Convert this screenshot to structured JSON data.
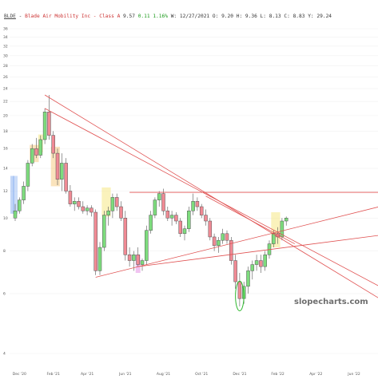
{
  "header": {
    "symbol": "BLDE",
    "name": "Blade Air Mobility Inc - Class A",
    "last": "9.57",
    "change": "0.11",
    "change_pct": "1.16%",
    "w_label": "W:",
    "date": "12/27/2021",
    "o_label": "O:",
    "open": "9.20",
    "h_label": "H:",
    "high": "9.36",
    "l_label": "L:",
    "low": "8.13",
    "c_label": "C:",
    "close": "8.83",
    "y_label": "Y:",
    "ytd": "29.24"
  },
  "watermark": "slopecharts.com",
  "colors": {
    "up": "#7ddc7d",
    "down": "#f08a94",
    "trendline": "#e05050",
    "highlight_orange": "#f5c26b",
    "highlight_yellow": "#f5e36b",
    "highlight_blue": "#8fb4f0",
    "highlight_magenta": "#e07be0"
  },
  "chart_data": {
    "type": "candlestick",
    "scale": "log",
    "ylim": [
      4,
      36
    ],
    "y_ticks": [
      "36",
      "34",
      "32",
      "30",
      "28",
      "26",
      "24",
      "22",
      "20",
      "18",
      "16",
      "14",
      "12",
      "10",
      "8",
      "6",
      "4"
    ],
    "y_tick_values": [
      36,
      34,
      32,
      30,
      28,
      26,
      24,
      22,
      20,
      18,
      16,
      14,
      12,
      10,
      8,
      6,
      4
    ],
    "x_ticks": [
      "Dec '20",
      "Feb '21",
      "Apr '21",
      "Jun '21",
      "Aug '21",
      "Oct '21",
      "Dec '21",
      "Feb '22",
      "Apr '22",
      "Jun '22"
    ],
    "x_tick_index": [
      1,
      9,
      17,
      26,
      35,
      44,
      53,
      62,
      71,
      80
    ],
    "candles": [
      [
        10.0,
        11.0,
        9.8,
        10.5
      ],
      [
        10.5,
        11.5,
        10.3,
        11.3
      ],
      [
        11.3,
        12.8,
        11.0,
        12.4
      ],
      [
        12.4,
        14.8,
        12.0,
        14.5
      ],
      [
        14.5,
        16.5,
        14.2,
        16.0
      ],
      [
        16.0,
        17.2,
        15.0,
        15.3
      ],
      [
        15.3,
        17.5,
        15.0,
        17.0
      ],
      [
        17.0,
        21.0,
        16.5,
        20.5
      ],
      [
        20.5,
        23.0,
        17.0,
        17.5
      ],
      [
        17.5,
        18.0,
        15.0,
        15.5
      ],
      [
        15.5,
        16.0,
        12.5,
        13.0
      ],
      [
        13.0,
        15.5,
        12.0,
        14.5
      ],
      [
        14.5,
        15.0,
        11.8,
        12.0
      ],
      [
        12.0,
        12.5,
        10.8,
        11.0
      ],
      [
        11.0,
        11.5,
        10.5,
        11.2
      ],
      [
        11.2,
        11.5,
        10.6,
        10.8
      ],
      [
        10.8,
        11.2,
        10.3,
        10.5
      ],
      [
        10.5,
        10.9,
        10.2,
        10.7
      ],
      [
        10.7,
        10.9,
        10.1,
        10.4
      ],
      [
        10.4,
        10.6,
        6.8,
        7.0
      ],
      [
        7.0,
        8.5,
        6.8,
        8.2
      ],
      [
        8.2,
        10.5,
        8.0,
        10.2
      ],
      [
        10.2,
        10.8,
        9.5,
        10.5
      ],
      [
        10.5,
        11.8,
        10.0,
        11.5
      ],
      [
        11.5,
        11.8,
        10.5,
        10.8
      ],
      [
        10.8,
        11.2,
        9.8,
        10.0
      ],
      [
        10.0,
        10.5,
        7.5,
        7.8
      ],
      [
        7.8,
        8.2,
        7.2,
        7.5
      ],
      [
        7.5,
        8.0,
        7.0,
        7.8
      ],
      [
        7.8,
        8.2,
        7.2,
        7.3
      ],
      [
        7.3,
        7.6,
        7.0,
        7.5
      ],
      [
        7.5,
        9.5,
        7.3,
        9.2
      ],
      [
        9.2,
        10.5,
        9.0,
        10.2
      ],
      [
        10.2,
        11.5,
        10.0,
        11.3
      ],
      [
        11.3,
        12.0,
        10.8,
        11.8
      ],
      [
        11.8,
        12.2,
        10.2,
        10.5
      ],
      [
        10.5,
        10.8,
        9.8,
        10.0
      ],
      [
        10.0,
        10.5,
        9.5,
        10.2
      ],
      [
        10.2,
        10.4,
        9.6,
        9.8
      ],
      [
        9.8,
        10.0,
        8.8,
        9.0
      ],
      [
        9.0,
        9.5,
        8.6,
        9.3
      ],
      [
        9.3,
        10.8,
        9.1,
        10.5
      ],
      [
        10.5,
        11.8,
        10.2,
        11.2
      ],
      [
        11.2,
        11.5,
        10.5,
        10.8
      ],
      [
        10.8,
        11.0,
        10.0,
        10.2
      ],
      [
        10.2,
        10.6,
        9.5,
        9.8
      ],
      [
        9.8,
        10.0,
        8.6,
        8.8
      ],
      [
        8.8,
        9.0,
        8.0,
        8.3
      ],
      [
        8.3,
        8.8,
        7.9,
        8.6
      ],
      [
        8.6,
        9.3,
        8.4,
        9.0
      ],
      [
        9.0,
        9.2,
        8.4,
        8.6
      ],
      [
        8.6,
        8.8,
        7.3,
        7.5
      ],
      [
        7.5,
        7.8,
        6.2,
        6.5
      ],
      [
        6.5,
        6.9,
        5.5,
        5.8
      ],
      [
        5.8,
        6.5,
        5.6,
        6.3
      ],
      [
        6.3,
        7.2,
        6.0,
        7.0
      ],
      [
        7.0,
        7.5,
        6.6,
        7.3
      ],
      [
        7.3,
        7.8,
        7.0,
        7.5
      ],
      [
        7.5,
        7.8,
        6.9,
        7.2
      ],
      [
        7.2,
        8.0,
        7.0,
        7.8
      ],
      [
        7.8,
        8.6,
        7.6,
        8.4
      ],
      [
        8.4,
        9.2,
        8.2,
        9.0
      ],
      [
        9.0,
        9.4,
        8.4,
        8.8
      ],
      [
        8.8,
        10.0,
        8.6,
        9.8
      ],
      [
        9.8,
        10.1,
        9.5,
        10.0
      ]
    ],
    "trendlines": [
      {
        "from": [
          7,
          23.0
        ],
        "to": [
          86,
          5.8
        ]
      },
      {
        "from": [
          7,
          21.0
        ],
        "to": [
          86,
          6.3
        ]
      },
      {
        "from": [
          27,
          11.9
        ],
        "to": [
          86,
          11.9
        ]
      },
      {
        "from": [
          19,
          6.7
        ],
        "to": [
          86,
          10.8
        ]
      },
      {
        "from": [
          29,
          7.2
        ],
        "to": [
          86,
          8.9
        ]
      },
      {
        "from": [
          45,
          11.6
        ],
        "to": [
          66,
          8.4
        ]
      }
    ],
    "highlights": [
      {
        "start": 0,
        "end": 0,
        "low": 10.3,
        "high": 13.3,
        "color": "highlight_blue"
      },
      {
        "start": 4,
        "end": 5,
        "low": 14.6,
        "high": 16.4,
        "color": "highlight_orange"
      },
      {
        "start": 6,
        "end": 6,
        "low": 15.6,
        "high": 17.6,
        "color": "highlight_yellow"
      },
      {
        "start": 9,
        "end": 10,
        "low": 12.4,
        "high": 16.2,
        "color": "highlight_orange"
      },
      {
        "start": 21,
        "end": 22,
        "low": 10.1,
        "high": 12.3,
        "color": "highlight_yellow"
      },
      {
        "start": 29,
        "end": 29,
        "low": 6.9,
        "high": 7.8,
        "color": "highlight_magenta"
      },
      {
        "start": 61,
        "end": 62,
        "low": 8.2,
        "high": 10.4,
        "color": "highlight_yellow"
      }
    ],
    "ellipses": [
      {
        "center": [
          53,
          5.9
        ],
        "rx": 2.2,
        "low": 5.4,
        "high": 6.6,
        "color": "#2db82d"
      }
    ],
    "left_bar": {
      "low": 10.3,
      "high": 13.3
    }
  }
}
